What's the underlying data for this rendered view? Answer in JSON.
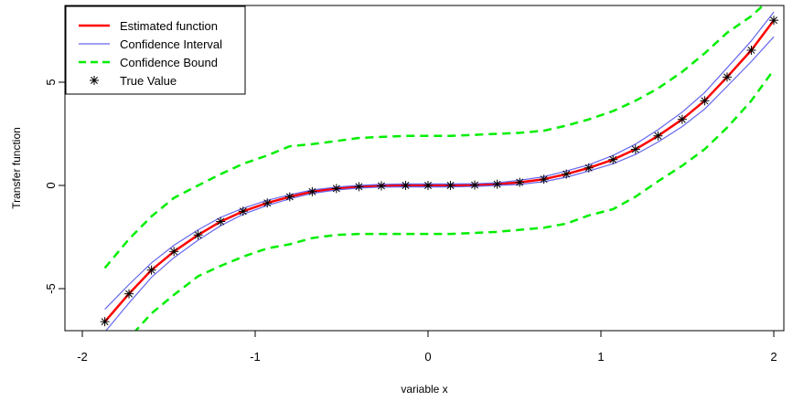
{
  "chart_data": {
    "type": "line",
    "title": "",
    "xlabel": "variable x",
    "ylabel": "Transfer function",
    "xlim": [
      -2,
      2
    ],
    "ylim": [
      -7,
      8.5
    ],
    "x_ticks": [
      -2,
      -1,
      0,
      1,
      2
    ],
    "x_tick_labels": [
      "-2",
      "-1",
      "0",
      "1",
      "2"
    ],
    "y_ticks": [
      -5,
      0,
      5
    ],
    "y_tick_labels": [
      "-5",
      "0",
      "5"
    ],
    "grid": false,
    "legend_position": "top-left",
    "x": [
      -1.87,
      -1.73,
      -1.6,
      -1.47,
      -1.33,
      -1.2,
      -1.07,
      -0.93,
      -0.8,
      -0.67,
      -0.53,
      -0.4,
      -0.27,
      -0.13,
      0.0,
      0.13,
      0.27,
      0.4,
      0.53,
      0.67,
      0.8,
      0.93,
      1.07,
      1.2,
      1.33,
      1.47,
      1.6,
      1.73,
      1.87,
      2.0
    ],
    "series": [
      {
        "name": "Estimated function",
        "color": "#ff0000",
        "style": "solid",
        "values": [
          -6.6,
          -5.25,
          -4.1,
          -3.2,
          -2.4,
          -1.75,
          -1.25,
          -0.85,
          -0.55,
          -0.3,
          -0.15,
          -0.06,
          -0.02,
          0.0,
          0.0,
          0.0,
          0.02,
          0.06,
          0.15,
          0.3,
          0.55,
          0.85,
          1.25,
          1.75,
          2.4,
          3.2,
          4.1,
          5.25,
          6.55,
          8.0
        ]
      },
      {
        "name": "Confidence Interval",
        "color": "#6666ee",
        "style": "solid",
        "upper": [
          -6.0,
          -4.8,
          -3.75,
          -2.9,
          -2.15,
          -1.55,
          -1.1,
          -0.72,
          -0.45,
          -0.22,
          -0.08,
          0.0,
          0.05,
          0.07,
          0.07,
          0.07,
          0.08,
          0.13,
          0.25,
          0.42,
          0.7,
          1.0,
          1.45,
          2.0,
          2.7,
          3.55,
          4.5,
          5.7,
          7.0,
          8.4
        ],
        "lower": [
          -7.1,
          -5.7,
          -4.45,
          -3.5,
          -2.65,
          -1.95,
          -1.4,
          -0.97,
          -0.65,
          -0.38,
          -0.22,
          -0.13,
          -0.08,
          -0.07,
          -0.07,
          -0.07,
          -0.05,
          0.0,
          0.05,
          0.18,
          0.4,
          0.7,
          1.05,
          1.5,
          2.1,
          2.85,
          3.7,
          4.8,
          6.0,
          7.2
        ]
      },
      {
        "name": "Confidence Bound",
        "color": "#00ee00",
        "style": "dashed",
        "upper": [
          -4.0,
          -2.6,
          -1.5,
          -0.6,
          0.0,
          0.55,
          1.05,
          1.45,
          1.9,
          2.0,
          2.15,
          2.3,
          2.35,
          2.4,
          2.4,
          2.4,
          2.45,
          2.5,
          2.55,
          2.65,
          2.9,
          3.2,
          3.6,
          4.1,
          4.7,
          5.5,
          6.4,
          7.4,
          8.2,
          9.2
        ],
        "lower": [
          -8.6,
          -7.4,
          -6.2,
          -5.3,
          -4.4,
          -3.9,
          -3.45,
          -3.05,
          -2.85,
          -2.55,
          -2.4,
          -2.35,
          -2.35,
          -2.35,
          -2.35,
          -2.35,
          -2.3,
          -2.25,
          -2.15,
          -2.05,
          -1.85,
          -1.45,
          -1.15,
          -0.55,
          0.2,
          0.95,
          1.75,
          2.8,
          4.1,
          5.6
        ]
      },
      {
        "name": "True Value",
        "color": "#000000",
        "style": "points",
        "marker": "asterisk",
        "values": [
          -6.6,
          -5.25,
          -4.1,
          -3.2,
          -2.4,
          -1.75,
          -1.25,
          -0.85,
          -0.55,
          -0.3,
          -0.15,
          -0.06,
          -0.02,
          0.0,
          0.0,
          0.0,
          0.02,
          0.06,
          0.15,
          0.3,
          0.55,
          0.85,
          1.25,
          1.75,
          2.4,
          3.2,
          4.1,
          5.25,
          6.55,
          8.0
        ]
      }
    ]
  }
}
